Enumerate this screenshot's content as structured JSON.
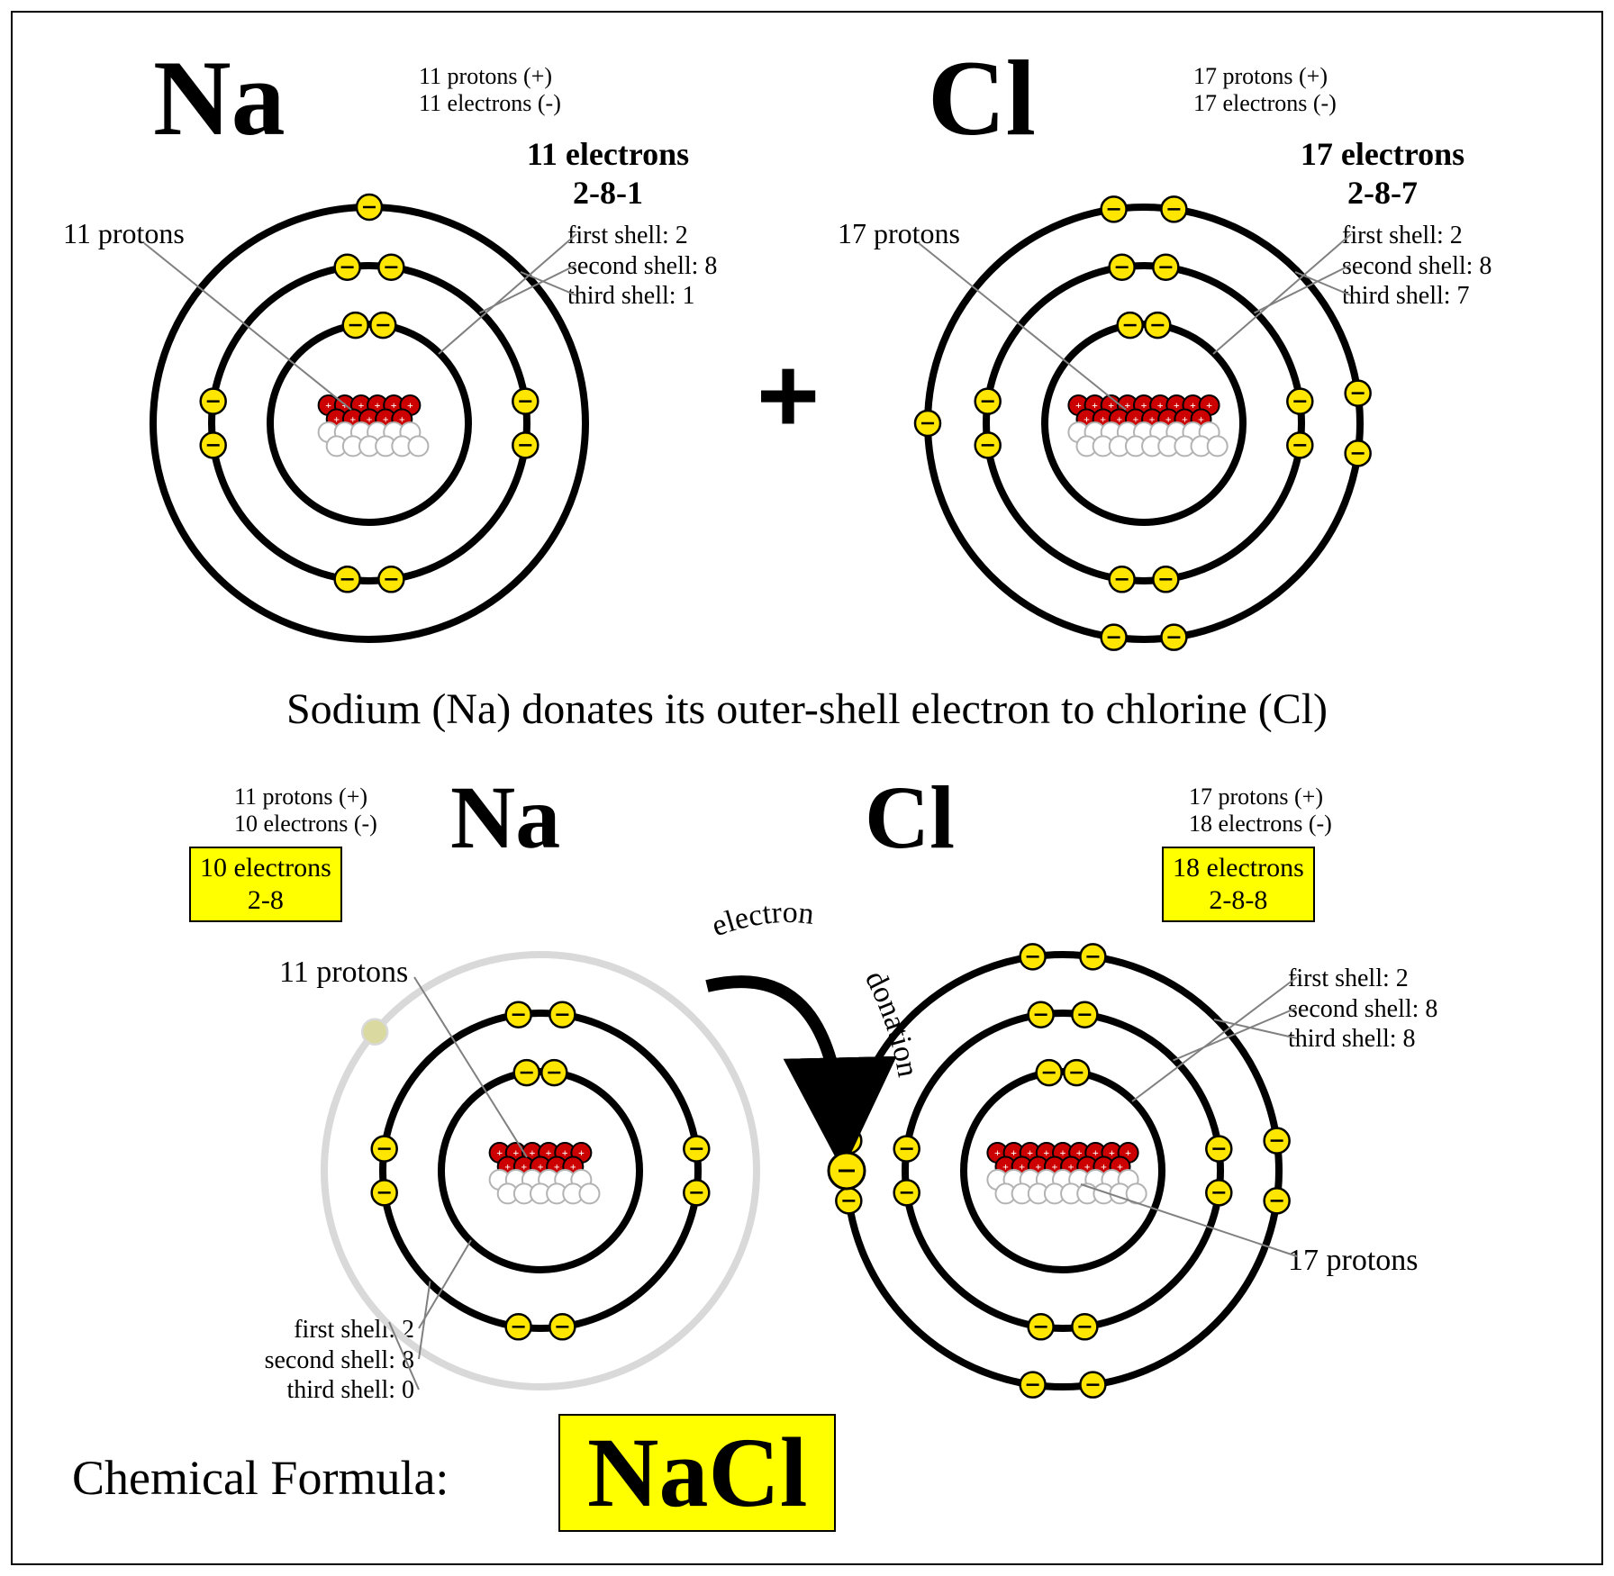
{
  "colors": {
    "ring": "#000000",
    "ring_ghost": "#d9d9d9",
    "electron_fill": "#ffe600",
    "electron_stroke": "#000000",
    "proton_fill": "#cc0000",
    "proton_stroke": "#000000",
    "neutron_fill": "#ffffff",
    "neutron_stroke": "#b3b3b3",
    "pointer": "#808080",
    "highlight_bg": "#ffff00",
    "arrow": "#000000",
    "ghost_electron": "#d9d9a0"
  },
  "geometry": {
    "ring_stroke": 8,
    "electron_r": 14,
    "nucleon_r": 11,
    "shell_radii": {
      "r1": 110,
      "r2": 175,
      "r3": 240
    }
  },
  "topNa": {
    "symbol": "Na",
    "symbol_fontsize": 120,
    "info1": "11 protons (+)",
    "info2": "11 electrons (-)",
    "e_header": "11 electrons",
    "e_config": "2-8-1",
    "shell1": "first shell: 2",
    "shell2": "second shell: 8",
    "shell3": "third shell: 1",
    "protons_label": "11 protons",
    "nucleus": {
      "protons": 11,
      "neutrons": 12
    },
    "shells": [
      2,
      8,
      1
    ]
  },
  "topCl": {
    "symbol": "Cl",
    "symbol_fontsize": 120,
    "info1": "17 protons (+)",
    "info2": "17 electrons (-)",
    "e_header": "17 electrons",
    "e_config": "2-8-7",
    "shell1": "first shell: 2",
    "shell2": "second shell: 8",
    "shell3": "third shell: 7",
    "protons_label": "17 protons",
    "nucleus": {
      "protons": 17,
      "neutrons": 18
    },
    "shells": [
      2,
      8,
      7
    ]
  },
  "plus": "+",
  "caption": "Sodium (Na) donates its outer-shell electron to chlorine (Cl)",
  "botNa": {
    "symbol": "Na",
    "symbol_fontsize": 100,
    "info1": "11 protons (+)",
    "info2": "10 electrons (-)",
    "box_line1": "10 electrons",
    "box_line2": "2-8",
    "protons_label": "11 protons",
    "shell1": "first shell: 2",
    "shell2": "second shell: 8",
    "shell3": "third shell: 0",
    "nucleus": {
      "protons": 11,
      "neutrons": 12
    },
    "shells": [
      2,
      8,
      0
    ],
    "ghost_shell": true
  },
  "botCl": {
    "symbol": "Cl",
    "symbol_fontsize": 100,
    "info1": "17 protons (+)",
    "info2": "18 electrons (-)",
    "box_line1": "18 electrons",
    "box_line2": "2-8-8",
    "protons_label": "17 protons",
    "shell1": "first shell: 2",
    "shell2": "second shell: 8",
    "shell3": "third shell: 8",
    "nucleus": {
      "protons": 17,
      "neutrons": 18
    },
    "shells": [
      2,
      8,
      8
    ]
  },
  "donation": {
    "word1": "electron",
    "word2": "donation"
  },
  "formula_label": "Chemical Formula:",
  "formula": "NaCl"
}
